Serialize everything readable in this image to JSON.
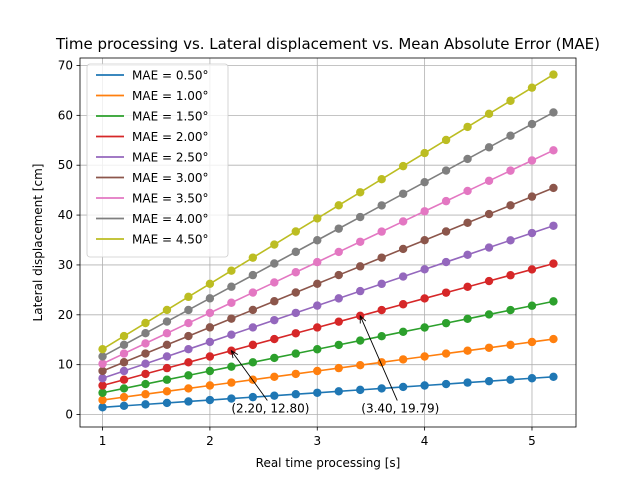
{
  "chart_data": {
    "type": "line",
    "title": "Time processing  vs. Lateral displacement vs. Mean Absolute Error (MAE)",
    "xlabel": "Real time processing [s]",
    "ylabel": "Lateral displacement [cm]",
    "xlim": [
      0.79,
      5.41
    ],
    "ylim": [
      -2.5,
      71.5
    ],
    "xticks": [
      1,
      2,
      3,
      4,
      5
    ],
    "yticks": [
      0,
      10,
      20,
      30,
      40,
      50,
      60,
      70
    ],
    "grid": true,
    "legend_position": "top-left",
    "x": [
      1.0,
      1.2,
      1.4,
      1.6,
      1.8,
      2.0,
      2.2,
      2.4,
      2.6,
      2.8,
      3.0,
      3.2,
      3.4,
      3.6,
      3.8,
      4.0,
      4.2,
      4.4,
      4.6,
      4.8,
      5.0,
      5.2
    ],
    "series": [
      {
        "name": "MAE = 0.50°",
        "color": "#1f77b4",
        "slope": 1.455
      },
      {
        "name": "MAE = 1.00°",
        "color": "#ff7f0e",
        "slope": 2.91
      },
      {
        "name": "MAE = 1.50°",
        "color": "#2ca02c",
        "slope": 4.364
      },
      {
        "name": "MAE = 2.00°",
        "color": "#d62728",
        "slope": 5.82
      },
      {
        "name": "MAE = 2.50°",
        "color": "#9467bd",
        "slope": 7.28
      },
      {
        "name": "MAE = 3.00°",
        "color": "#8c564b",
        "slope": 8.74
      },
      {
        "name": "MAE = 3.50°",
        "color": "#e377c2",
        "slope": 10.19
      },
      {
        "name": "MAE = 4.00°",
        "color": "#7f7f7f",
        "slope": 11.65
      },
      {
        "name": "MAE = 4.50°",
        "color": "#bcbd22",
        "slope": 13.11
      }
    ],
    "annotations": [
      {
        "text": "(2.20, 12.80)",
        "point": [
          2.2,
          12.8
        ],
        "text_at": [
          2.2,
          0.4
        ]
      },
      {
        "text": "(3.40, 19.79)",
        "point": [
          3.4,
          19.79
        ],
        "text_at": [
          3.41,
          0.4
        ]
      }
    ]
  }
}
